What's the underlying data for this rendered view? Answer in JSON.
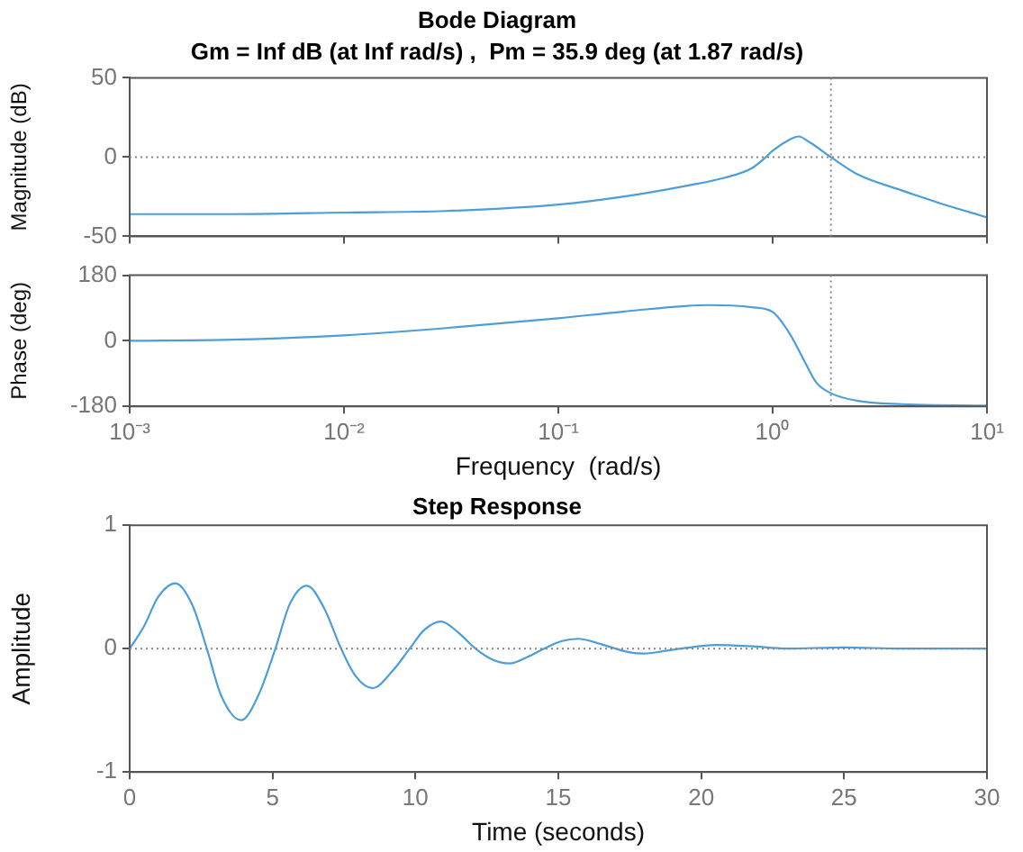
{
  "chart_data": [
    {
      "type": "line",
      "title": "Bode Diagram",
      "subtitle": "Gm = Inf dB (at Inf rad/s) ,  Pm = 35.9 deg (at 1.87 rad/s)",
      "ylabel": "Magnitude (dB)",
      "log": "x",
      "xlim": [
        0.001,
        10
      ],
      "xticks": [
        {
          "value": 0.001,
          "label": null
        },
        {
          "value": 0.01,
          "label": null
        },
        {
          "value": 0.1,
          "label": null
        },
        {
          "value": 1,
          "label": null
        },
        {
          "value": 10,
          "label": null
        }
      ],
      "ylim": [
        -50,
        50
      ],
      "yticks": [
        -50,
        0,
        50
      ],
      "tick_labels": "y",
      "grid": false,
      "legend": false,
      "marker": "none",
      "line_style": "solid",
      "series": [
        {
          "color": "#4d9ed8",
          "x": [
            0.001,
            0.003,
            0.01,
            0.03,
            0.1,
            0.2,
            0.4,
            0.6,
            0.8,
            0.93,
            1.0,
            1.2,
            1.32,
            1.5,
            1.87,
            2.5,
            4,
            6,
            10
          ],
          "values": [
            -36,
            -36,
            -35,
            -34,
            -30,
            -25,
            -18,
            -13,
            -7,
            0,
            4,
            11,
            13,
            9,
            0,
            -11,
            -21,
            -29,
            -38
          ]
        }
      ],
      "ref_lines": [
        {
          "axis": "y",
          "value": 0
        },
        {
          "axis": "x",
          "value": 1.87
        }
      ]
    },
    {
      "type": "line",
      "ylabel": "Phase (deg)",
      "xlabel": "Frequency  (rad/s)",
      "log": "x",
      "xlim": [
        0.001,
        10
      ],
      "xticks": [
        {
          "value": 0.001,
          "label": "10⁻³"
        },
        {
          "value": 0.01,
          "label": "10⁻²"
        },
        {
          "value": 0.1,
          "label": "10⁻¹"
        },
        {
          "value": 1,
          "label": "10⁰"
        },
        {
          "value": 10,
          "label": "10¹"
        }
      ],
      "ylim": [
        -180,
        180
      ],
      "yticks": [
        -180,
        0,
        180
      ],
      "grid": false,
      "legend": false,
      "marker": "none",
      "line_style": "solid",
      "series": [
        {
          "color": "#4d9ed8",
          "x": [
            0.001,
            0.003,
            0.01,
            0.03,
            0.1,
            0.2,
            0.5,
            0.8,
            1.0,
            1.2,
            1.41,
            1.6,
            1.87,
            2.5,
            4,
            10
          ],
          "values": [
            0,
            3,
            15,
            35,
            62,
            80,
            98,
            92,
            79,
            20,
            -57,
            -115,
            -144,
            -165,
            -174,
            -178
          ]
        }
      ],
      "ref_lines": [
        {
          "axis": "x",
          "value": 1.87
        }
      ]
    },
    {
      "type": "line",
      "title": "Step Response",
      "xlabel": "Time (seconds)",
      "ylabel": "Amplitude",
      "xlim": [
        0,
        30
      ],
      "xticks": [
        0,
        5,
        10,
        15,
        20,
        25,
        30
      ],
      "ylim": [
        -1,
        1
      ],
      "yticks": [
        -1,
        0,
        1
      ],
      "grid": false,
      "legend": false,
      "marker": "none",
      "line_style": "solid",
      "series": [
        {
          "color": "#4d9ed8",
          "x": [
            0,
            0.5,
            1.0,
            1.6,
            2.2,
            2.7,
            3.2,
            3.9,
            4.5,
            5.1,
            5.6,
            6.2,
            6.8,
            7.4,
            7.9,
            8.5,
            9.2,
            9.8,
            10.3,
            10.9,
            11.5,
            12.1,
            12.7,
            13.3,
            13.9,
            14.5,
            15.1,
            15.7,
            16.3,
            17.0,
            17.5,
            18.0,
            18.7,
            19.3,
            20.5,
            21.7,
            23,
            25,
            27,
            30
          ],
          "values": [
            0,
            0.18,
            0.42,
            0.53,
            0.35,
            0,
            -0.38,
            -0.58,
            -0.38,
            0,
            0.36,
            0.51,
            0.33,
            0,
            -0.22,
            -0.32,
            -0.18,
            0,
            0.15,
            0.22,
            0.13,
            0,
            -0.09,
            -0.12,
            -0.07,
            0,
            0.06,
            0.08,
            0.05,
            0,
            -0.03,
            -0.04,
            -0.02,
            0,
            0.03,
            0.02,
            0,
            0.01,
            0,
            0
          ]
        }
      ],
      "ref_lines": [
        {
          "axis": "y",
          "value": 0
        }
      ]
    }
  ]
}
